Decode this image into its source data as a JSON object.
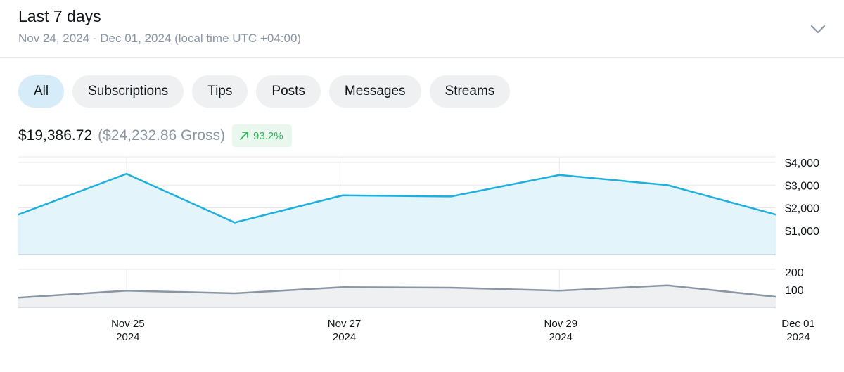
{
  "header": {
    "title": "Last 7 days",
    "subtitle": "Nov 24, 2024 - Dec 01, 2024 (local time UTC +04:00)",
    "chevron_icon": "chevron-down-icon"
  },
  "tabs": [
    {
      "label": "All",
      "active": true
    },
    {
      "label": "Subscriptions",
      "active": false
    },
    {
      "label": "Tips",
      "active": false
    },
    {
      "label": "Posts",
      "active": false
    },
    {
      "label": "Messages",
      "active": false
    },
    {
      "label": "Streams",
      "active": false
    }
  ],
  "summary": {
    "net": "$19,386.72",
    "gross": "($24,232.86 Gross)",
    "change": "93.2%",
    "change_icon": "arrow-up-right-icon"
  },
  "colors": {
    "earnings_line": "#1fafdf",
    "earnings_fill": "#e3f4fb",
    "count_line": "#8a96a3",
    "count_fill": "#eef0f2",
    "positive": "#2fb559",
    "active_tab": "#d6ecf8"
  },
  "chart_data": [
    {
      "type": "area",
      "x": [
        "Nov 24",
        "Nov 25",
        "Nov 26",
        "Nov 27",
        "Nov 28",
        "Nov 29",
        "Nov 30",
        "Dec 01"
      ],
      "values": [
        1700,
        3500,
        1350,
        2550,
        2500,
        3450,
        3000,
        1700
      ],
      "yticks": [
        "$4,000",
        "$3,000",
        "$2,000",
        "$1,000"
      ],
      "ytick_values": [
        4000,
        3000,
        2000,
        1000
      ],
      "ylim": [
        0,
        4000
      ],
      "grid": true
    },
    {
      "type": "area",
      "x": [
        "Nov 24",
        "Nov 25",
        "Nov 26",
        "Nov 27",
        "Nov 28",
        "Nov 29",
        "Nov 30",
        "Dec 01"
      ],
      "values": [
        55,
        95,
        80,
        115,
        112,
        95,
        125,
        60
      ],
      "yticks": [
        "200",
        "100"
      ],
      "ytick_values": [
        200,
        100
      ],
      "ylim": [
        0,
        200
      ],
      "grid": true
    }
  ],
  "x_tick_labels": [
    {
      "date": "Nov 25",
      "year": "2024"
    },
    {
      "date": "Nov 27",
      "year": "2024"
    },
    {
      "date": "Nov 29",
      "year": "2024"
    },
    {
      "date": "Dec 01",
      "year": "2024"
    }
  ]
}
